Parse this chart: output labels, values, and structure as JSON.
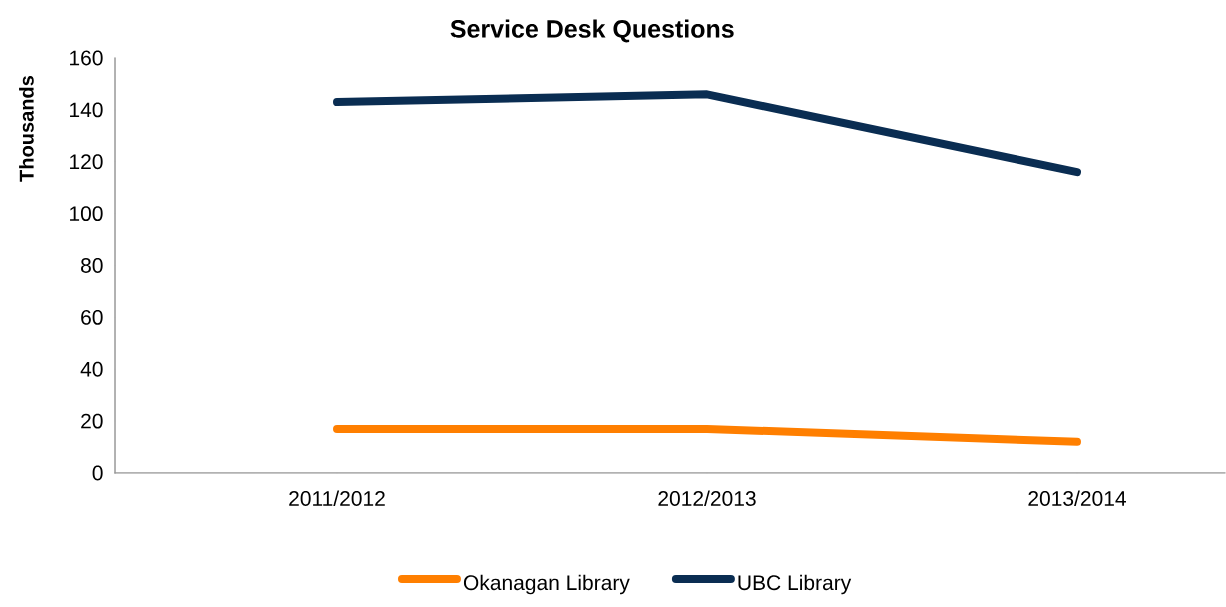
{
  "chart_data": {
    "type": "line",
    "title": "Service Desk Questions",
    "ylabel": "Thousands",
    "categories": [
      "2011/2012",
      "2012/2013",
      "2013/2014"
    ],
    "series": [
      {
        "name": "Okanagan Library",
        "color": "#ff7f00",
        "values": [
          17,
          17,
          12
        ]
      },
      {
        "name": "UBC Library",
        "color": "#0a2d52",
        "values": [
          143,
          146,
          116
        ]
      }
    ],
    "ylim": [
      0,
      160
    ],
    "yticks": [
      0,
      20,
      40,
      60,
      80,
      100,
      120,
      140,
      160
    ],
    "grid": false,
    "legend": "bottom",
    "line_style": "solid"
  }
}
